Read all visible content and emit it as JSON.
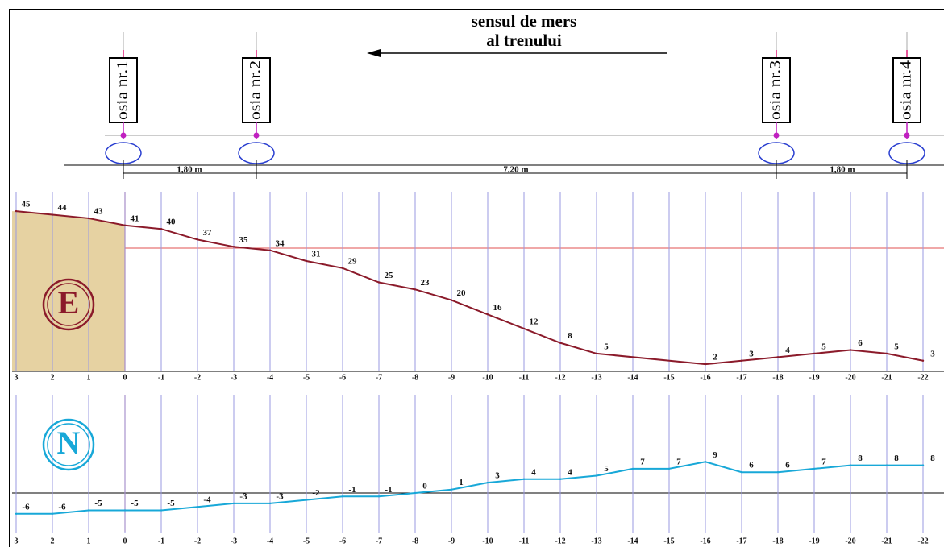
{
  "header": {
    "title": [
      "sensul de mers",
      "al trenului"
    ]
  },
  "axles": [
    "osia nr.1",
    "osia nr.2",
    "osia nr.3",
    "osia nr.4"
  ],
  "distances": [
    "1,80 m",
    "7,20 m",
    "1,80 m"
  ],
  "profiles": [
    {
      "symbol": "E",
      "xticks": [
        3,
        2,
        1,
        0,
        -1,
        -2,
        -3,
        -4,
        -5,
        -6,
        -7,
        -8,
        -9,
        -10,
        -11,
        -12,
        -13,
        -14,
        -15,
        -16,
        -17,
        -18,
        -19,
        -20,
        -21,
        -22
      ],
      "x": [
        3,
        2,
        1,
        0,
        -1,
        -2,
        -3,
        -4,
        -5,
        -6,
        -7,
        -8,
        -9,
        -10,
        -11,
        -12,
        -13,
        -16,
        -17,
        -18,
        -19,
        -20,
        -21,
        -22
      ],
      "values": [
        45,
        44,
        43,
        41,
        40,
        37,
        35,
        34,
        31,
        29,
        25,
        23,
        20,
        16,
        12,
        8,
        5,
        2,
        3,
        4,
        5,
        6,
        5,
        3
      ]
    },
    {
      "symbol": "N",
      "xticks": [
        3,
        2,
        1,
        0,
        -1,
        -2,
        -3,
        -4,
        -5,
        -6,
        -7,
        -8,
        -9,
        -10,
        -11,
        -12,
        -13,
        -14,
        -15,
        -16,
        -17,
        -18,
        -19,
        -20,
        -21,
        -22
      ],
      "x": [
        3,
        2,
        1,
        0,
        -1,
        -2,
        -3,
        -4,
        -5,
        -6,
        -7,
        -8,
        -9,
        -10,
        -11,
        -12,
        -13,
        -14,
        -15,
        -16,
        -17,
        -18,
        -19,
        -20,
        -21,
        -22
      ],
      "values": [
        -6,
        -6,
        -5,
        -5,
        -5,
        -4,
        -3,
        -3,
        -2,
        -1,
        -1,
        0,
        1,
        3,
        4,
        4,
        5,
        7,
        7,
        9,
        6,
        6,
        7,
        8,
        8,
        8
      ]
    }
  ]
}
